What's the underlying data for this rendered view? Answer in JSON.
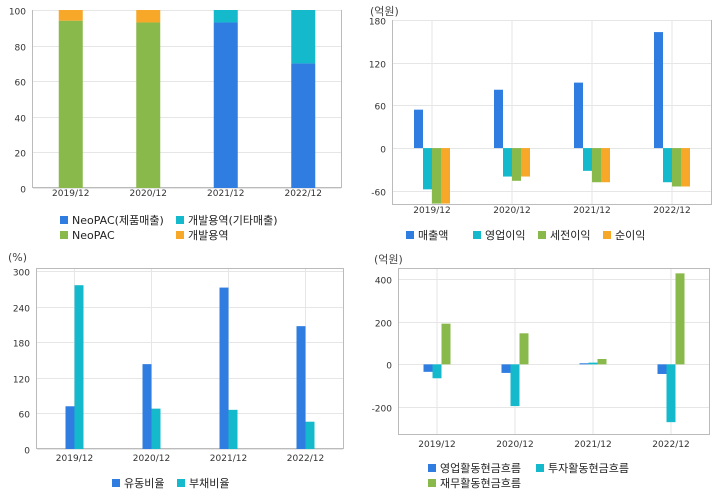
{
  "colors": {
    "blue": "#2f7de1",
    "cyan": "#14bacb",
    "green": "#8ab94b",
    "orange": "#f7a829",
    "grid": "#e6e6e6",
    "frame": "#bbbbbb"
  },
  "chart_data": [
    {
      "type": "bar",
      "stacked": true,
      "title": "",
      "unit_label": "",
      "categories": [
        "2019/12",
        "2020/12",
        "2021/12",
        "2022/12"
      ],
      "ylim": [
        0,
        100
      ],
      "yticks": [
        "0",
        "20",
        "40",
        "60",
        "80",
        "100"
      ],
      "series": [
        {
          "name": "NeoPAC(제품매출)",
          "color": "#2f7de1",
          "values": [
            0,
            0,
            93,
            70
          ]
        },
        {
          "name": "개발용역(기타매출)",
          "color": "#14bacb",
          "values": [
            0,
            0,
            7,
            30
          ]
        },
        {
          "name": "NeoPAC",
          "color": "#8ab94b",
          "values": [
            94,
            93,
            0,
            0
          ]
        },
        {
          "name": "개발용역",
          "color": "#f7a829",
          "values": [
            6,
            7,
            0,
            0
          ]
        }
      ]
    },
    {
      "type": "bar",
      "title": "",
      "unit_label": "(억원)",
      "categories": [
        "2019/12",
        "2020/12",
        "2021/12",
        "2022/12"
      ],
      "ylim": [
        -80,
        180
      ],
      "yticks": [
        "180",
        "120",
        "60",
        "0",
        "-60"
      ],
      "series": [
        {
          "name": "매출액",
          "color": "#2f7de1",
          "values": [
            54,
            82,
            92,
            163
          ]
        },
        {
          "name": "영업이익",
          "color": "#14bacb",
          "values": [
            -58,
            -40,
            -32,
            -48
          ]
        },
        {
          "name": "세전이익",
          "color": "#8ab94b",
          "values": [
            -78,
            -46,
            -48,
            -54
          ]
        },
        {
          "name": "순이익",
          "color": "#f7a829",
          "values": [
            -78,
            -40,
            -48,
            -54
          ]
        }
      ]
    },
    {
      "type": "bar",
      "title": "",
      "unit_label": "(%)",
      "categories": [
        "2019/12",
        "2020/12",
        "2021/12",
        "2022/12"
      ],
      "ylim": [
        0,
        305
      ],
      "yticks": [
        "0",
        "60",
        "120",
        "180",
        "240",
        "300"
      ],
      "series": [
        {
          "name": "유동비율",
          "color": "#2f7de1",
          "values": [
            72,
            143,
            272,
            207
          ]
        },
        {
          "name": "부채비율",
          "color": "#14bacb",
          "values": [
            276,
            68,
            66,
            46
          ]
        }
      ]
    },
    {
      "type": "bar",
      "title": "",
      "unit_label": "(억원)",
      "categories": [
        "2019/12",
        "2020/12",
        "2021/12",
        "2022/12"
      ],
      "ylim": [
        -330,
        450
      ],
      "yticks": [
        "400",
        "200",
        "0",
        "-200"
      ],
      "series": [
        {
          "name": "영업활동현금흐름",
          "color": "#2f7de1",
          "values": [
            -35,
            -40,
            5,
            -45
          ]
        },
        {
          "name": "투자활동현금흐름",
          "color": "#14bacb",
          "values": [
            -65,
            -195,
            8,
            -270
          ]
        },
        {
          "name": "재무활동현금흐름",
          "color": "#8ab94b",
          "values": [
            190,
            145,
            25,
            425
          ]
        }
      ]
    }
  ]
}
